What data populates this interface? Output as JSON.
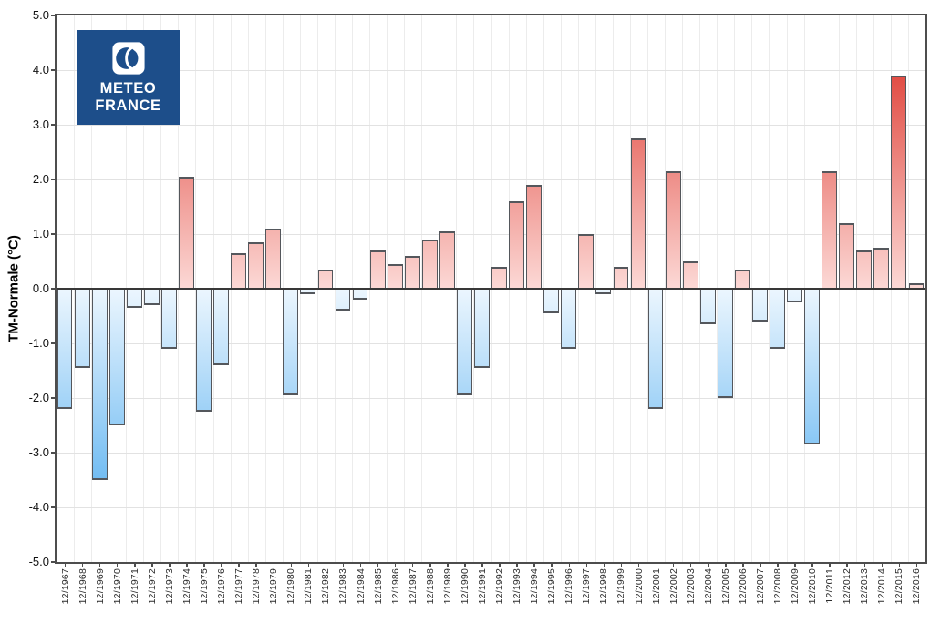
{
  "logo": {
    "line1": "METEO",
    "line2": "FRANCE",
    "bg_color": "#1d4e8a"
  },
  "chart_data": {
    "type": "bar",
    "title": "",
    "xlabel": "",
    "ylabel": "TM-Normale (°C)",
    "ylim": [
      -5.0,
      5.0
    ],
    "ytick_step": 1.0,
    "ytick_labels": [
      "5.0",
      "4.0",
      "3.0",
      "2.0",
      "1.0",
      "0.0",
      "-1.0",
      "-2.0",
      "-3.0",
      "-4.0",
      "-5.0"
    ],
    "grid": true,
    "legend": "none",
    "categories": [
      "12/1967",
      "12/1968",
      "12/1969",
      "12/1970",
      "12/1971",
      "12/1972",
      "12/1973",
      "12/1974",
      "12/1975",
      "12/1976",
      "12/1977",
      "12/1978",
      "12/1979",
      "12/1980",
      "12/1981",
      "12/1982",
      "12/1983",
      "12/1984",
      "12/1985",
      "12/1986",
      "12/1987",
      "12/1988",
      "12/1989",
      "12/1990",
      "12/1991",
      "12/1992",
      "12/1993",
      "12/1994",
      "12/1995",
      "12/1996",
      "12/1997",
      "12/1998",
      "12/1999",
      "12/2000",
      "12/2001",
      "12/2002",
      "12/2003",
      "12/2004",
      "12/2005",
      "12/2006",
      "12/2007",
      "12/2008",
      "12/2009",
      "12/2010",
      "12/2011",
      "12/2012",
      "12/2013",
      "12/2014",
      "12/2015",
      "12/2016"
    ],
    "values": [
      -2.2,
      -1.45,
      -3.5,
      -2.5,
      -0.35,
      -0.3,
      -1.1,
      2.05,
      -2.25,
      -1.4,
      0.65,
      0.85,
      1.1,
      -1.95,
      -0.1,
      0.35,
      -0.4,
      -0.2,
      0.7,
      0.45,
      0.6,
      0.9,
      1.05,
      -1.95,
      -1.45,
      0.4,
      1.6,
      1.9,
      -0.45,
      -1.1,
      1.0,
      -0.1,
      0.4,
      2.75,
      -2.2,
      2.15,
      0.5,
      -0.65,
      -2.0,
      0.35,
      -0.6,
      -1.1,
      -0.25,
      -2.85,
      2.15,
      1.2,
      0.7,
      0.75,
      3.9,
      0.1
    ],
    "colors": {
      "positive_gradient_low": "#fcd9d6",
      "positive_gradient_high": "#da251b",
      "negative_gradient_low": "#ecf6fe",
      "negative_gradient_high": "#3ea4ee",
      "bar_border": "#54575c",
      "zero_line": "#383838",
      "frame": "#4d4d4d",
      "gridline": "#e2e2e2"
    }
  }
}
